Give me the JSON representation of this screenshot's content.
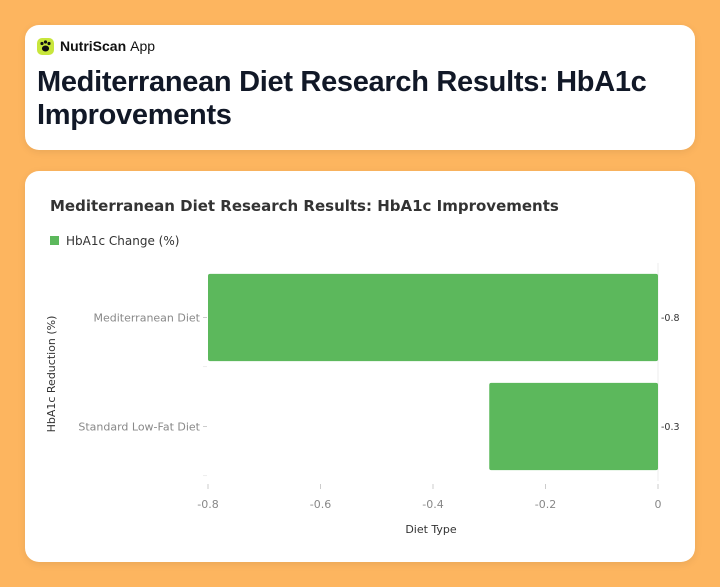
{
  "app": {
    "name": "NutriScan",
    "suffix": "App",
    "icon": "paw-icon"
  },
  "page": {
    "title": "Mediterranean Diet Research Results: HbA1c Improvements"
  },
  "colors": {
    "background": "#FDB55F",
    "bar": "#5CB85C",
    "brand_icon": "#C8E63C"
  },
  "chart_data": {
    "type": "bar",
    "orientation": "horizontal",
    "title": "Mediterranean Diet Research Results: HbA1c Improvements",
    "categories": [
      "Mediterranean Diet",
      "Standard Low-Fat Diet"
    ],
    "series": [
      {
        "name": "HbA1c Change (%)",
        "values": [
          -0.8,
          -0.3
        ]
      }
    ],
    "data_labels": [
      "-0.8",
      "-0.3"
    ],
    "x_ticks": [
      "-0.8",
      "-0.6",
      "-0.4",
      "-0.2",
      "0"
    ],
    "x_tick_values": [
      -0.8,
      -0.6,
      -0.4,
      -0.2,
      0
    ],
    "xlabel": "Diet Type",
    "ylabel": "HbA1c Reduction (%)",
    "xlim": [
      -0.8,
      0
    ],
    "legend_position": "top-left",
    "grid": false
  }
}
